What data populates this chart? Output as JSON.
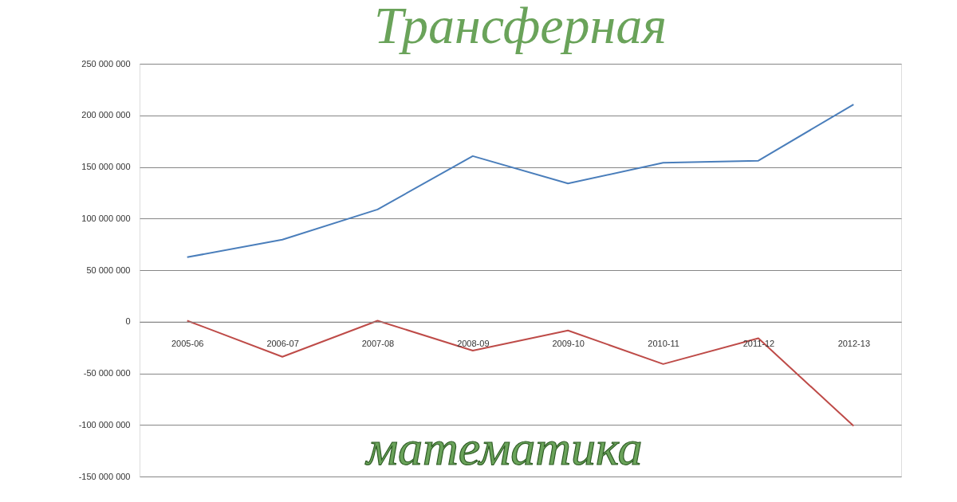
{
  "chart_data": {
    "type": "line",
    "title": "Трансферная",
    "annotations": [
      "математика"
    ],
    "categories": [
      "2005-06",
      "2006-07",
      "2007-08",
      "2008-09",
      "2009-10",
      "2010-11",
      "2011-12",
      "2012-13"
    ],
    "series": [
      {
        "color": "#4a7ebb",
        "values": [
          62500000,
          79500000,
          108800000,
          160500000,
          134000000,
          154000000,
          156000000,
          210600000
        ]
      },
      {
        "color": "#be4b48",
        "values": [
          1000000,
          -34000000,
          1000000,
          -28000000,
          -8500000,
          -41000000,
          -16000000,
          -101000000
        ]
      }
    ],
    "ylim": [
      -150000000,
      250000000
    ],
    "yticks": [
      {
        "value": -150000000,
        "label": "-150 000 000"
      },
      {
        "value": -100000000,
        "label": "-100 000 000"
      },
      {
        "value": -50000000,
        "label": "-50 000 000"
      },
      {
        "value": 0,
        "label": "0"
      },
      {
        "value": 50000000,
        "label": "50 000 000"
      },
      {
        "value": 100000000,
        "label": "100 000 000"
      },
      {
        "value": 150000000,
        "label": "150 000 000"
      },
      {
        "value": 200000000,
        "label": "200 000 000"
      },
      {
        "value": 250000000,
        "label": "250 000 000"
      }
    ],
    "grid": "y",
    "legend": false,
    "marker": "none",
    "line_style": "solid"
  }
}
